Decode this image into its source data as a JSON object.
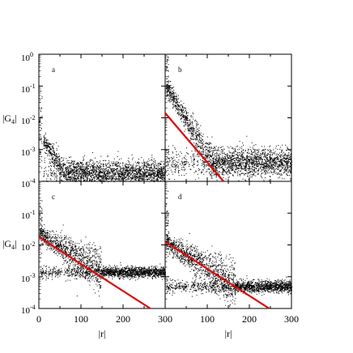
{
  "chart_data": [
    {
      "panel": "a",
      "type": "scatter",
      "x_range": [
        0,
        300
      ],
      "y_scale": "log",
      "y_range_exponent": [
        -4,
        0
      ],
      "y_tick_labels": [
        "10",
        "10",
        "10",
        "10",
        "10"
      ],
      "y_tick_exponents": [
        "0",
        "-1",
        "-2",
        "-3",
        "-4"
      ],
      "ylabel_main": "|G",
      "ylabel_sub": "4",
      "ylabel_tail": "|",
      "xlabel": "",
      "scatter_shape": {
        "peak_logy": -2.7,
        "decay_per_x": 0.0204,
        "floor_logy": -3.75,
        "floor_spread": 0.2,
        "x_start": 10
      },
      "fit_line": null
    },
    {
      "panel": "b",
      "type": "scatter",
      "x_range": [
        0,
        300
      ],
      "y_scale": "log",
      "y_range_exponent": [
        -4,
        0
      ],
      "xlabel": "",
      "scatter_shape": {
        "peak_logy": -1.0,
        "decay_per_x": 0.022,
        "floor_logy": -3.4,
        "floor_spread": 0.22,
        "x_start": 2
      },
      "fit_line": {
        "color": "#dd0000",
        "x0": 0,
        "logy0": -1.85,
        "slope_per_x": -0.0155
      }
    },
    {
      "panel": "c",
      "type": "scatter",
      "x_range": [
        0,
        300
      ],
      "y_scale": "log",
      "y_range_exponent": [
        -4,
        0
      ],
      "x_tick_labels": [
        "0",
        "100",
        "200",
        "300"
      ],
      "y_tick_labels": [
        "10",
        "10",
        "10",
        "10"
      ],
      "y_tick_exponents": [
        "-1",
        "-2",
        "-3",
        "-4"
      ],
      "ylabel_main": "|G",
      "ylabel_sub": "4",
      "ylabel_tail": "|",
      "xlabel": "|r|",
      "scatter_shape": {
        "peak_logy": -1.65,
        "decay_per_x": 0.0082,
        "floor_logy": -2.85,
        "floor_spread": 0.08,
        "x_start": 2
      },
      "fit_line": {
        "color": "#dd0000",
        "x0": 0,
        "logy0": -1.75,
        "slope_per_x": -0.0085
      }
    },
    {
      "panel": "d",
      "type": "scatter",
      "x_range": [
        0,
        300
      ],
      "y_scale": "log",
      "y_range_exponent": [
        -4,
        0
      ],
      "x_tick_labels": [
        "0",
        "100",
        "200",
        "300"
      ],
      "xlabel": "|r|",
      "scatter_shape": {
        "peak_logy": -1.9,
        "decay_per_x": 0.0085,
        "floor_logy": -3.3,
        "floor_spread": 0.09,
        "x_start": 2
      },
      "fit_line": {
        "color": "#dd0000",
        "x0": 0,
        "logy0": -1.9,
        "slope_per_x": -0.0085
      }
    }
  ]
}
